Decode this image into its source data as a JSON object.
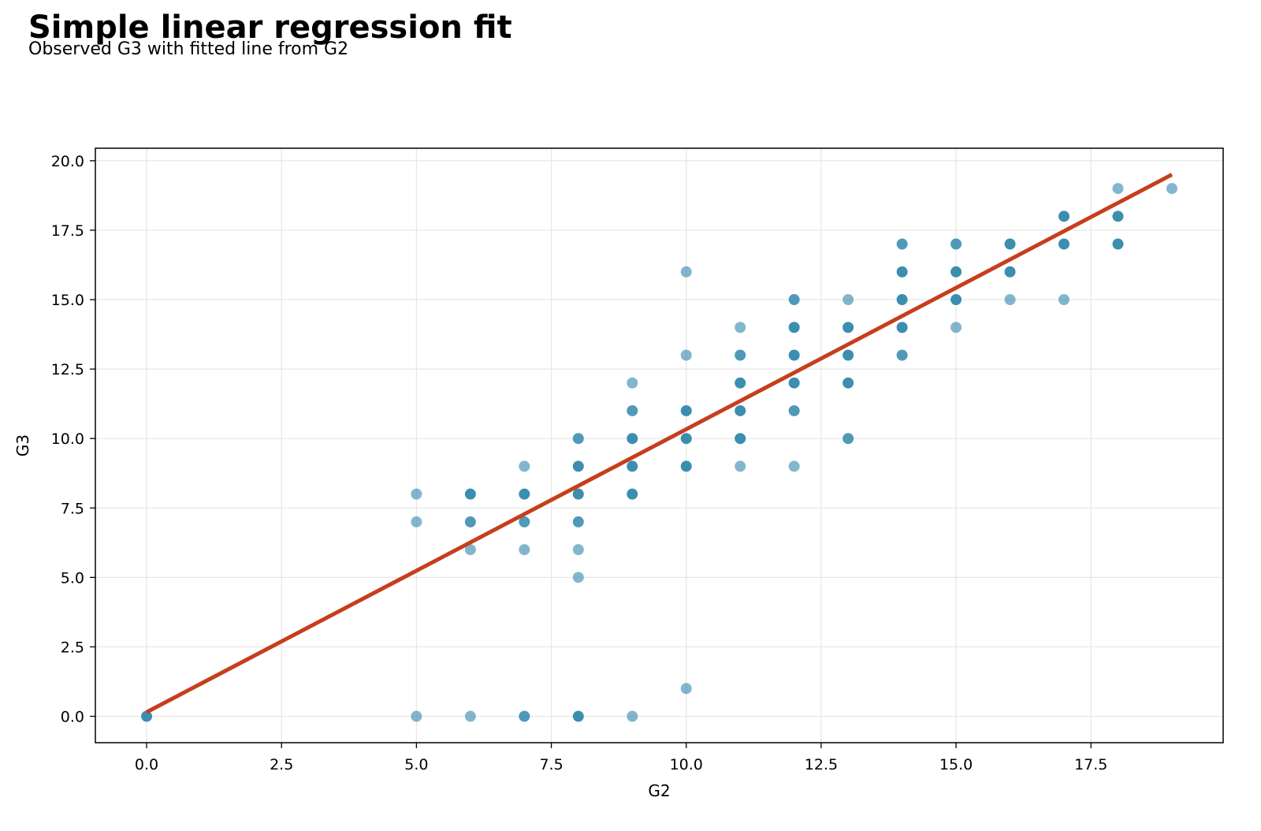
{
  "header": {
    "title": "Simple linear regression fit",
    "subtitle": "Observed G3 with fitted line from G2"
  },
  "chart_data": {
    "type": "scatter",
    "xlabel": "G2",
    "ylabel": "G3",
    "xlim": [
      -0.95,
      19.95
    ],
    "ylim": [
      -0.95,
      20.45
    ],
    "xticks": [
      0.0,
      2.5,
      5.0,
      7.5,
      10.0,
      12.5,
      15.0,
      17.5
    ],
    "yticks": [
      0.0,
      2.5,
      5.0,
      7.5,
      10.0,
      12.5,
      15.0,
      17.5,
      20.0
    ],
    "tick_labels_x": [
      "0.0",
      "2.5",
      "5.0",
      "7.5",
      "10.0",
      "12.5",
      "15.0",
      "17.5"
    ],
    "tick_labels_y": [
      "0.0",
      "2.5",
      "5.0",
      "7.5",
      "10.0",
      "12.5",
      "15.0",
      "17.5",
      "20.0"
    ],
    "grid": true,
    "colors": {
      "points": "#2e86ab",
      "fit_line": "#c73e1d"
    },
    "points": [
      {
        "x": 0,
        "y": 0,
        "n": 3
      },
      {
        "x": 5,
        "y": 0,
        "n": 1
      },
      {
        "x": 5,
        "y": 7,
        "n": 1
      },
      {
        "x": 5,
        "y": 8,
        "n": 1
      },
      {
        "x": 6,
        "y": 0,
        "n": 1
      },
      {
        "x": 6,
        "y": 6,
        "n": 1
      },
      {
        "x": 6,
        "y": 7,
        "n": 2
      },
      {
        "x": 6,
        "y": 8,
        "n": 3
      },
      {
        "x": 7,
        "y": 0,
        "n": 2
      },
      {
        "x": 7,
        "y": 6,
        "n": 1
      },
      {
        "x": 7,
        "y": 7,
        "n": 2
      },
      {
        "x": 7,
        "y": 8,
        "n": 3
      },
      {
        "x": 7,
        "y": 9,
        "n": 1
      },
      {
        "x": 8,
        "y": 0,
        "n": 3
      },
      {
        "x": 8,
        "y": 5,
        "n": 1
      },
      {
        "x": 8,
        "y": 6,
        "n": 1
      },
      {
        "x": 8,
        "y": 7,
        "n": 2
      },
      {
        "x": 8,
        "y": 8,
        "n": 3
      },
      {
        "x": 8,
        "y": 9,
        "n": 3
      },
      {
        "x": 8,
        "y": 10,
        "n": 2
      },
      {
        "x": 9,
        "y": 0,
        "n": 1
      },
      {
        "x": 9,
        "y": 8,
        "n": 3
      },
      {
        "x": 9,
        "y": 9,
        "n": 3
      },
      {
        "x": 9,
        "y": 10,
        "n": 3
      },
      {
        "x": 9,
        "y": 11,
        "n": 2
      },
      {
        "x": 9,
        "y": 12,
        "n": 1
      },
      {
        "x": 10,
        "y": 1,
        "n": 1
      },
      {
        "x": 10,
        "y": 9,
        "n": 3
      },
      {
        "x": 10,
        "y": 10,
        "n": 3
      },
      {
        "x": 10,
        "y": 11,
        "n": 3
      },
      {
        "x": 10,
        "y": 13,
        "n": 1
      },
      {
        "x": 10,
        "y": 16,
        "n": 1
      },
      {
        "x": 11,
        "y": 9,
        "n": 1
      },
      {
        "x": 11,
        "y": 10,
        "n": 3
      },
      {
        "x": 11,
        "y": 11,
        "n": 3
      },
      {
        "x": 11,
        "y": 12,
        "n": 3
      },
      {
        "x": 11,
        "y": 13,
        "n": 2
      },
      {
        "x": 11,
        "y": 14,
        "n": 1
      },
      {
        "x": 12,
        "y": 9,
        "n": 1
      },
      {
        "x": 12,
        "y": 11,
        "n": 2
      },
      {
        "x": 12,
        "y": 12,
        "n": 3
      },
      {
        "x": 12,
        "y": 13,
        "n": 3
      },
      {
        "x": 12,
        "y": 14,
        "n": 3
      },
      {
        "x": 12,
        "y": 15,
        "n": 2
      },
      {
        "x": 13,
        "y": 10,
        "n": 2
      },
      {
        "x": 13,
        "y": 12,
        "n": 3
      },
      {
        "x": 13,
        "y": 13,
        "n": 3
      },
      {
        "x": 13,
        "y": 14,
        "n": 3
      },
      {
        "x": 13,
        "y": 15,
        "n": 1
      },
      {
        "x": 14,
        "y": 13,
        "n": 2
      },
      {
        "x": 14,
        "y": 14,
        "n": 3
      },
      {
        "x": 14,
        "y": 15,
        "n": 3
      },
      {
        "x": 14,
        "y": 16,
        "n": 3
      },
      {
        "x": 14,
        "y": 17,
        "n": 2
      },
      {
        "x": 15,
        "y": 14,
        "n": 1
      },
      {
        "x": 15,
        "y": 15,
        "n": 3
      },
      {
        "x": 15,
        "y": 16,
        "n": 3
      },
      {
        "x": 15,
        "y": 17,
        "n": 2
      },
      {
        "x": 16,
        "y": 15,
        "n": 1
      },
      {
        "x": 16,
        "y": 16,
        "n": 3
      },
      {
        "x": 16,
        "y": 17,
        "n": 3
      },
      {
        "x": 17,
        "y": 15,
        "n": 1
      },
      {
        "x": 17,
        "y": 17,
        "n": 3
      },
      {
        "x": 17,
        "y": 18,
        "n": 3
      },
      {
        "x": 18,
        "y": 17,
        "n": 3
      },
      {
        "x": 18,
        "y": 18,
        "n": 3
      },
      {
        "x": 18,
        "y": 19,
        "n": 1
      },
      {
        "x": 19,
        "y": 19,
        "n": 1
      }
    ],
    "fit_line": {
      "x": [
        0,
        19
      ],
      "y": [
        0.15,
        19.5
      ]
    }
  }
}
